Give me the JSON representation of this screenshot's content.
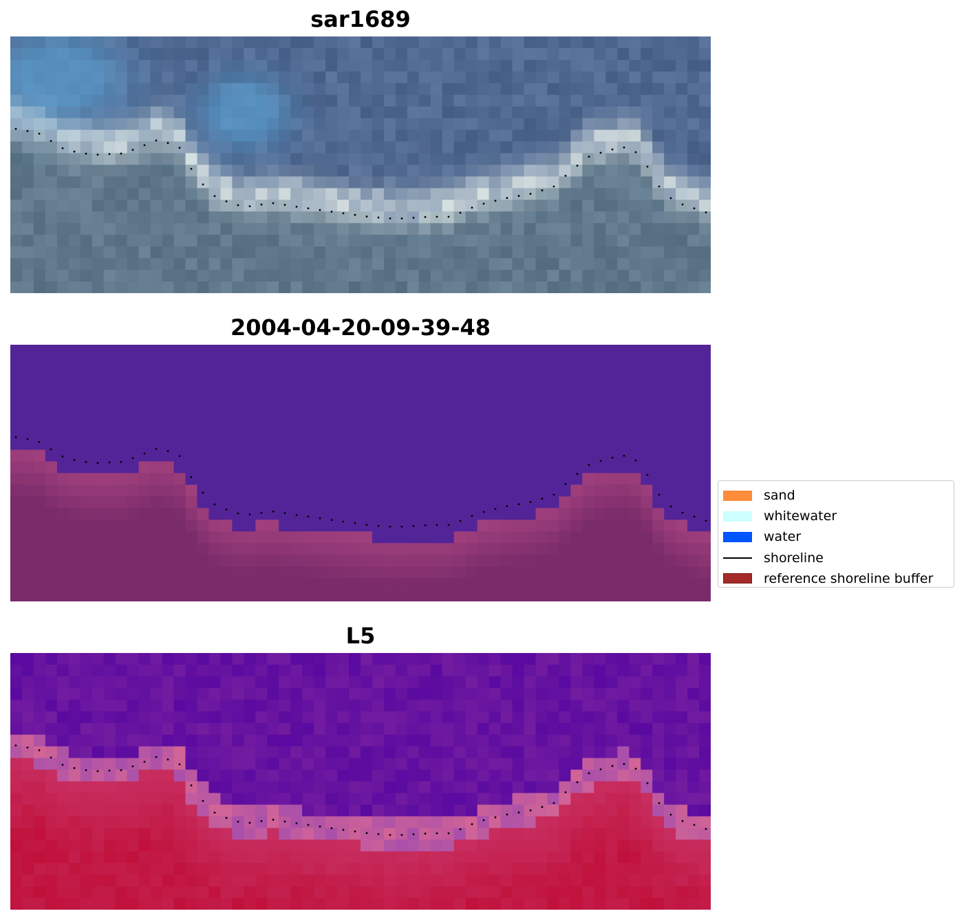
{
  "panels": [
    {
      "title": "sar1689",
      "style": "rgb"
    },
    {
      "title": "2004-04-20-09-39-48",
      "style": "classified"
    },
    {
      "title": "L5",
      "style": "index"
    }
  ],
  "legend": {
    "items": [
      {
        "label": "sand",
        "color": "#ff8c3a",
        "kind": "patch"
      },
      {
        "label": "whitewater",
        "color": "#ccfffe",
        "kind": "patch"
      },
      {
        "label": "water",
        "color": "#0055ff",
        "kind": "patch"
      },
      {
        "label": "shoreline",
        "color": "#000000",
        "kind": "line"
      },
      {
        "label": "reference shoreline buffer",
        "color": "#a52a2a",
        "kind": "patch"
      }
    ]
  },
  "colors": {
    "classified_water": "#532497",
    "classified_buffer": "#7a2b6a",
    "index_low": "#5a0aa0",
    "index_high": "#c0103a"
  }
}
